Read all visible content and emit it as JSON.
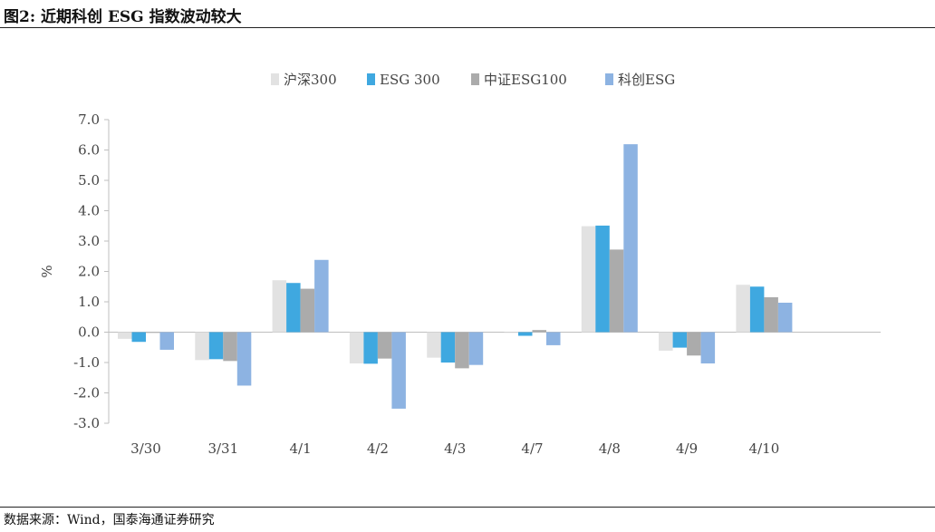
{
  "title": "图2:  近期科创 ESG 指数波动较大",
  "source": "数据来源：Wind，国泰海通证券研究",
  "chart_data": {
    "type": "bar",
    "ylabel": "%",
    "ylim": [
      -3.0,
      7.0
    ],
    "yticks": [
      "7.0",
      "6.0",
      "5.0",
      "4.0",
      "3.0",
      "2.0",
      "1.0",
      "0.0",
      "-1.0",
      "-2.0",
      "-3.0"
    ],
    "categories": [
      "3/30",
      "3/31",
      "4/1",
      "4/2",
      "4/3",
      "4/7",
      "4/8",
      "4/9",
      "4/10"
    ],
    "legend_position": "top",
    "series": [
      {
        "name": "沪深300",
        "color": "#E2E2E2",
        "values": [
          -0.22,
          -0.92,
          1.71,
          -1.03,
          -0.84,
          0.0,
          3.49,
          -0.61,
          1.56
        ]
      },
      {
        "name": "ESG 300",
        "color": "#3FA8E0",
        "values": [
          -0.32,
          -0.89,
          1.62,
          -1.04,
          -1.0,
          -0.12,
          3.51,
          -0.51,
          1.5
        ]
      },
      {
        "name": "中证ESG100",
        "color": "#ABABAB",
        "values": [
          -0.01,
          -0.95,
          1.43,
          -0.87,
          -1.19,
          0.07,
          2.72,
          -0.77,
          1.15
        ]
      },
      {
        "name": "科创ESG",
        "color": "#8DB3E2",
        "values": [
          -0.58,
          -1.76,
          2.38,
          -2.52,
          -1.08,
          -0.43,
          6.19,
          -1.03,
          0.97
        ]
      }
    ]
  }
}
